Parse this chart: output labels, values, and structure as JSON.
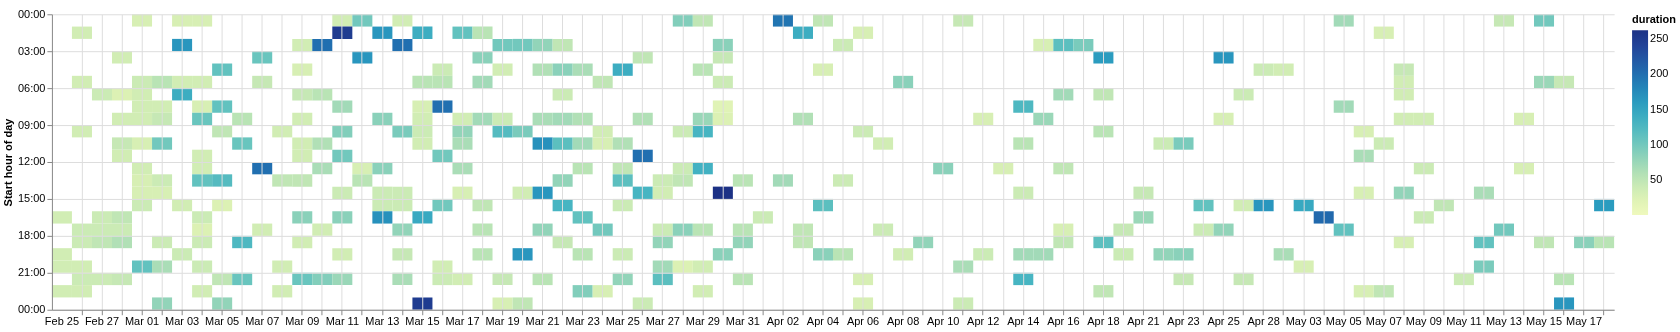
{
  "chart_data": {
    "type": "heatmap",
    "ylabel": "Start hour of day",
    "clabel": "duration",
    "grid": true,
    "categories": [
      "Feb 25",
      null,
      "Feb 27",
      null,
      "Mar 01",
      null,
      "Mar 03",
      null,
      "Mar 05",
      null,
      "Mar 07",
      null,
      "Mar 09",
      null,
      "Mar 11",
      null,
      "Mar 13",
      null,
      "Mar 15",
      null,
      "Mar 17",
      null,
      "Mar 19",
      null,
      "Mar 21",
      null,
      "Mar 23",
      null,
      "Mar 25",
      null,
      "Mar 27",
      null,
      "Mar 29",
      null,
      "Mar 31",
      null,
      "Apr 02",
      null,
      "Apr 04",
      null,
      "Apr 06",
      null,
      "Apr 08",
      null,
      "Apr 10",
      null,
      "Apr 12",
      null,
      "Apr 14",
      null,
      "Apr 16",
      null,
      "Apr 18",
      null,
      "Apr 21",
      null,
      "Apr 23",
      null,
      "Apr 25",
      null,
      "Apr 28",
      null,
      "May 03",
      null,
      "May 05",
      null,
      "May 07",
      null,
      "May 09",
      null,
      "May 11",
      null,
      "May 13",
      null,
      "May 15",
      null,
      "May 17",
      null
    ],
    "ylim": [
      24,
      0
    ],
    "yticks": [
      {
        "value": 0,
        "label": "00:00"
      },
      {
        "value": 3,
        "label": "03:00"
      },
      {
        "value": 6,
        "label": "06:00"
      },
      {
        "value": 9,
        "label": "09:00"
      },
      {
        "value": 12,
        "label": "12:00"
      },
      {
        "value": 15,
        "label": "15:00"
      },
      {
        "value": 18,
        "label": "18:00"
      },
      {
        "value": 21,
        "label": "21:00"
      },
      {
        "value": 24,
        "label": "00:00"
      }
    ],
    "clim": [
      0,
      263
    ],
    "cticks": [
      50,
      100,
      150,
      200,
      250
    ],
    "cells": [
      [
        null,
        null,
        null,
        null,
        30,
        null,
        30,
        30,
        null,
        null,
        null,
        null,
        null,
        null,
        35,
        100,
        null,
        35,
        null,
        null,
        null,
        null,
        null,
        null,
        null,
        null,
        null,
        null,
        null,
        null,
        null,
        90,
        50,
        null,
        null,
        null,
        195,
        null,
        50,
        null,
        null,
        null,
        null,
        null,
        null,
        45,
        null,
        null,
        null,
        null,
        null,
        null,
        null,
        null,
        null,
        null,
        null,
        null,
        null,
        null,
        null,
        null,
        null,
        null,
        70,
        null,
        null,
        null,
        null,
        null,
        null,
        null,
        45,
        null,
        100,
        null,
        null,
        null
      ],
      [
        null,
        35,
        null,
        null,
        null,
        null,
        null,
        null,
        null,
        null,
        null,
        null,
        null,
        null,
        250,
        null,
        165,
        null,
        140,
        null,
        110,
        55,
        null,
        null,
        null,
        null,
        null,
        null,
        null,
        null,
        null,
        null,
        null,
        null,
        null,
        null,
        null,
        140,
        null,
        null,
        30,
        null,
        null,
        null,
        null,
        null,
        null,
        null,
        null,
        null,
        null,
        null,
        null,
        null,
        null,
        null,
        null,
        null,
        null,
        null,
        null,
        null,
        null,
        null,
        null,
        null,
        30,
        null,
        null,
        null,
        null,
        null,
        null,
        null,
        null,
        null,
        null,
        null
      ],
      [
        null,
        null,
        null,
        null,
        null,
        null,
        165,
        null,
        null,
        null,
        null,
        null,
        35,
        200,
        null,
        null,
        null,
        200,
        null,
        null,
        null,
        null,
        100,
        100,
        80,
        50,
        null,
        null,
        null,
        null,
        null,
        null,
        null,
        85,
        null,
        null,
        null,
        null,
        null,
        40,
        null,
        null,
        null,
        null,
        null,
        null,
        null,
        null,
        null,
        30,
        115,
        95,
        null,
        null,
        null,
        null,
        null,
        null,
        null,
        null,
        null,
        null,
        null,
        null,
        null,
        null,
        null,
        null,
        null,
        null,
        null,
        null,
        null,
        null,
        null,
        null,
        null,
        null
      ],
      [
        null,
        null,
        null,
        35,
        null,
        null,
        null,
        null,
        null,
        null,
        105,
        null,
        null,
        null,
        null,
        165,
        null,
        null,
        null,
        null,
        null,
        85,
        null,
        null,
        null,
        null,
        null,
        null,
        null,
        50,
        null,
        null,
        null,
        45,
        null,
        null,
        null,
        null,
        null,
        null,
        null,
        null,
        null,
        null,
        null,
        null,
        null,
        null,
        null,
        null,
        null,
        null,
        160,
        null,
        null,
        null,
        null,
        null,
        165,
        null,
        null,
        null,
        null,
        null,
        null,
        null,
        null,
        null,
        null,
        null,
        null,
        null,
        null,
        null,
        null,
        null,
        null,
        null
      ],
      [
        null,
        null,
        null,
        null,
        null,
        null,
        null,
        null,
        110,
        null,
        null,
        null,
        30,
        null,
        null,
        null,
        null,
        null,
        null,
        40,
        null,
        null,
        35,
        null,
        60,
        85,
        65,
        null,
        140,
        null,
        null,
        null,
        55,
        null,
        null,
        null,
        null,
        null,
        30,
        null,
        null,
        null,
        null,
        null,
        null,
        null,
        null,
        null,
        null,
        null,
        null,
        null,
        null,
        null,
        null,
        null,
        null,
        null,
        null,
        null,
        40,
        35,
        null,
        null,
        null,
        null,
        null,
        45,
        null,
        null,
        null,
        null,
        null,
        null,
        null,
        null,
        null,
        null
      ],
      [
        null,
        35,
        null,
        null,
        40,
        55,
        35,
        35,
        null,
        null,
        45,
        null,
        null,
        null,
        null,
        null,
        null,
        null,
        55,
        55,
        null,
        70,
        null,
        null,
        null,
        null,
        null,
        50,
        null,
        null,
        null,
        null,
        null,
        40,
        null,
        null,
        null,
        null,
        null,
        null,
        null,
        null,
        85,
        null,
        null,
        null,
        null,
        null,
        null,
        null,
        null,
        null,
        null,
        null,
        null,
        null,
        null,
        null,
        null,
        null,
        null,
        null,
        null,
        null,
        null,
        null,
        null,
        35,
        null,
        null,
        null,
        null,
        null,
        null,
        75,
        45,
        null,
        null
      ],
      [
        null,
        null,
        40,
        25,
        35,
        null,
        140,
        null,
        null,
        null,
        null,
        null,
        45,
        55,
        null,
        null,
        null,
        null,
        null,
        null,
        null,
        null,
        null,
        null,
        null,
        40,
        null,
        null,
        null,
        null,
        null,
        null,
        null,
        null,
        null,
        null,
        null,
        null,
        null,
        null,
        null,
        null,
        null,
        null,
        null,
        null,
        null,
        null,
        null,
        null,
        70,
        null,
        50,
        null,
        null,
        null,
        null,
        null,
        null,
        40,
        null,
        null,
        null,
        null,
        null,
        null,
        null,
        35,
        null,
        null,
        null,
        null,
        null,
        null,
        null,
        null,
        null,
        null
      ],
      [
        null,
        null,
        null,
        null,
        35,
        35,
        null,
        30,
        110,
        null,
        null,
        null,
        null,
        null,
        70,
        null,
        null,
        null,
        30,
        200,
        null,
        null,
        null,
        null,
        null,
        null,
        null,
        null,
        null,
        null,
        null,
        null,
        null,
        20,
        null,
        null,
        null,
        null,
        null,
        null,
        null,
        null,
        null,
        null,
        null,
        null,
        null,
        null,
        125,
        null,
        null,
        null,
        null,
        null,
        null,
        null,
        null,
        null,
        null,
        null,
        null,
        null,
        null,
        null,
        70,
        null,
        null,
        null,
        null,
        null,
        null,
        null,
        null,
        null,
        null,
        null,
        null,
        null
      ],
      [
        null,
        null,
        null,
        35,
        35,
        45,
        null,
        105,
        null,
        55,
        null,
        null,
        35,
        null,
        null,
        null,
        85,
        null,
        35,
        null,
        35,
        70,
        40,
        null,
        65,
        70,
        60,
        null,
        null,
        60,
        null,
        null,
        75,
        25,
        null,
        null,
        null,
        60,
        null,
        null,
        null,
        null,
        null,
        null,
        null,
        null,
        30,
        null,
        null,
        75,
        null,
        null,
        null,
        null,
        null,
        null,
        null,
        null,
        30,
        null,
        null,
        null,
        null,
        null,
        null,
        null,
        null,
        35,
        35,
        null,
        null,
        null,
        null,
        30,
        null,
        null,
        null,
        null
      ],
      [
        null,
        35,
        null,
        null,
        null,
        null,
        null,
        null,
        50,
        null,
        null,
        35,
        null,
        null,
        90,
        null,
        null,
        95,
        40,
        null,
        80,
        null,
        120,
        95,
        null,
        null,
        null,
        35,
        null,
        null,
        null,
        40,
        130,
        null,
        null,
        null,
        null,
        null,
        null,
        null,
        40,
        null,
        null,
        null,
        null,
        null,
        null,
        null,
        null,
        null,
        null,
        null,
        55,
        null,
        null,
        null,
        null,
        null,
        null,
        null,
        null,
        null,
        null,
        null,
        null,
        30,
        null,
        null,
        null,
        null,
        null,
        null,
        null,
        null,
        null,
        null,
        null,
        null
      ],
      [
        null,
        null,
        null,
        45,
        30,
        100,
        null,
        null,
        null,
        105,
        null,
        null,
        35,
        60,
        null,
        null,
        null,
        null,
        35,
        null,
        65,
        null,
        null,
        null,
        170,
        115,
        70,
        30,
        60,
        null,
        null,
        null,
        null,
        null,
        null,
        null,
        null,
        null,
        null,
        null,
        null,
        35,
        null,
        null,
        null,
        null,
        null,
        null,
        55,
        null,
        null,
        null,
        null,
        null,
        null,
        40,
        95,
        null,
        null,
        null,
        null,
        null,
        null,
        null,
        null,
        null,
        40,
        null,
        null,
        null,
        null,
        null,
        null,
        null,
        null,
        null,
        null,
        null
      ],
      [
        null,
        null,
        null,
        35,
        null,
        null,
        null,
        35,
        null,
        null,
        null,
        null,
        35,
        null,
        100,
        null,
        null,
        null,
        null,
        100,
        null,
        null,
        null,
        null,
        null,
        null,
        null,
        null,
        null,
        200,
        null,
        null,
        null,
        null,
        null,
        null,
        null,
        null,
        null,
        null,
        null,
        null,
        null,
        null,
        null,
        null,
        null,
        null,
        null,
        null,
        null,
        null,
        null,
        null,
        null,
        null,
        null,
        null,
        null,
        null,
        null,
        null,
        null,
        null,
        null,
        65,
        null,
        null,
        null,
        null,
        null,
        null,
        null,
        null,
        null,
        null,
        null,
        null
      ],
      [
        null,
        null,
        null,
        null,
        35,
        null,
        null,
        35,
        null,
        null,
        200,
        null,
        null,
        65,
        null,
        30,
        85,
        null,
        null,
        null,
        65,
        null,
        null,
        null,
        null,
        null,
        55,
        null,
        50,
        null,
        null,
        40,
        135,
        null,
        null,
        null,
        null,
        null,
        null,
        null,
        null,
        null,
        null,
        null,
        85,
        null,
        null,
        30,
        null,
        null,
        50,
        null,
        null,
        null,
        null,
        null,
        null,
        null,
        null,
        null,
        null,
        null,
        null,
        null,
        null,
        null,
        null,
        null,
        40,
        null,
        null,
        null,
        null,
        30,
        null,
        null,
        null,
        null
      ],
      [
        null,
        null,
        null,
        null,
        30,
        40,
        null,
        110,
        120,
        null,
        null,
        50,
        50,
        null,
        null,
        55,
        null,
        null,
        null,
        null,
        null,
        null,
        null,
        null,
        null,
        80,
        null,
        null,
        115,
        null,
        40,
        50,
        null,
        null,
        55,
        null,
        70,
        null,
        null,
        40,
        null,
        null,
        null,
        null,
        null,
        null,
        null,
        null,
        null,
        null,
        null,
        null,
        null,
        null,
        null,
        null,
        null,
        null,
        null,
        null,
        null,
        null,
        null,
        null,
        null,
        null,
        null,
        null,
        null,
        null,
        null,
        null,
        null,
        null,
        null,
        null,
        null,
        null
      ],
      [
        null,
        null,
        null,
        null,
        30,
        30,
        null,
        null,
        null,
        null,
        null,
        null,
        null,
        null,
        40,
        null,
        40,
        40,
        null,
        null,
        30,
        null,
        null,
        35,
        165,
        null,
        null,
        null,
        null,
        130,
        35,
        null,
        null,
        263,
        null,
        null,
        null,
        null,
        null,
        null,
        null,
        null,
        null,
        null,
        null,
        null,
        null,
        null,
        40,
        null,
        null,
        null,
        null,
        null,
        45,
        null,
        null,
        null,
        null,
        null,
        null,
        null,
        null,
        null,
        null,
        30,
        null,
        80,
        null,
        null,
        null,
        65,
        null,
        null,
        null,
        null,
        null,
        null
      ],
      [
        null,
        null,
        null,
        null,
        40,
        null,
        35,
        null,
        25,
        null,
        null,
        null,
        null,
        null,
        null,
        null,
        40,
        40,
        null,
        100,
        null,
        50,
        null,
        null,
        null,
        130,
        null,
        null,
        40,
        null,
        null,
        null,
        null,
        null,
        null,
        null,
        null,
        null,
        115,
        null,
        null,
        null,
        null,
        null,
        null,
        null,
        null,
        null,
        null,
        null,
        null,
        null,
        null,
        null,
        null,
        null,
        null,
        110,
        null,
        35,
        165,
        null,
        145,
        null,
        null,
        null,
        null,
        null,
        null,
        50,
        null,
        null,
        null,
        null,
        null,
        null,
        null,
        160
      ],
      [
        35,
        null,
        40,
        50,
        null,
        null,
        null,
        40,
        null,
        null,
        null,
        null,
        85,
        null,
        85,
        null,
        170,
        null,
        145,
        null,
        null,
        null,
        null,
        null,
        null,
        null,
        110,
        null,
        null,
        null,
        null,
        null,
        null,
        null,
        null,
        40,
        null,
        null,
        null,
        null,
        null,
        null,
        null,
        null,
        null,
        null,
        null,
        null,
        null,
        null,
        null,
        null,
        null,
        null,
        75,
        null,
        null,
        null,
        null,
        null,
        null,
        null,
        null,
        205,
        null,
        null,
        null,
        null,
        40,
        null,
        null,
        null,
        null,
        null,
        null,
        null,
        null,
        null
      ],
      [
        null,
        40,
        40,
        40,
        null,
        null,
        null,
        25,
        null,
        null,
        35,
        null,
        null,
        35,
        null,
        null,
        null,
        80,
        null,
        null,
        null,
        55,
        null,
        null,
        80,
        null,
        null,
        100,
        null,
        null,
        40,
        85,
        55,
        null,
        55,
        null,
        null,
        50,
        null,
        null,
        null,
        40,
        null,
        null,
        null,
        null,
        null,
        null,
        null,
        null,
        30,
        null,
        null,
        45,
        null,
        null,
        null,
        40,
        80,
        null,
        null,
        null,
        null,
        null,
        110,
        null,
        null,
        null,
        null,
        null,
        null,
        null,
        100,
        null,
        null,
        null,
        null,
        null
      ],
      [
        null,
        40,
        50,
        60,
        null,
        40,
        null,
        40,
        null,
        125,
        null,
        null,
        35,
        null,
        null,
        null,
        null,
        null,
        null,
        null,
        null,
        null,
        null,
        null,
        null,
        45,
        null,
        null,
        null,
        null,
        80,
        null,
        null,
        null,
        80,
        null,
        null,
        50,
        null,
        null,
        null,
        null,
        null,
        80,
        null,
        null,
        null,
        null,
        null,
        null,
        50,
        null,
        115,
        null,
        null,
        null,
        null,
        null,
        null,
        null,
        null,
        null,
        null,
        null,
        null,
        null,
        null,
        30,
        null,
        null,
        null,
        110,
        null,
        null,
        50,
        null,
        85,
        55
      ],
      [
        35,
        null,
        null,
        null,
        null,
        null,
        40,
        null,
        null,
        null,
        null,
        null,
        null,
        null,
        35,
        null,
        null,
        45,
        null,
        null,
        null,
        55,
        null,
        165,
        null,
        null,
        55,
        null,
        40,
        null,
        null,
        null,
        null,
        85,
        null,
        null,
        null,
        null,
        85,
        55,
        null,
        null,
        35,
        null,
        null,
        null,
        40,
        null,
        70,
        70,
        null,
        null,
        null,
        40,
        null,
        80,
        85,
        null,
        null,
        null,
        null,
        65,
        null,
        null,
        null,
        null,
        null,
        null,
        null,
        null,
        null,
        null,
        null,
        null,
        null,
        null,
        null,
        null
      ],
      [
        35,
        35,
        null,
        null,
        110,
        65,
        null,
        40,
        null,
        null,
        null,
        35,
        null,
        null,
        null,
        null,
        null,
        null,
        null,
        35,
        null,
        null,
        null,
        null,
        null,
        null,
        null,
        null,
        null,
        null,
        70,
        25,
        35,
        null,
        null,
        null,
        null,
        null,
        null,
        null,
        null,
        null,
        null,
        null,
        null,
        65,
        null,
        null,
        null,
        null,
        null,
        null,
        null,
        null,
        null,
        null,
        null,
        null,
        null,
        null,
        null,
        null,
        30,
        null,
        null,
        null,
        null,
        null,
        null,
        null,
        null,
        95,
        null,
        null,
        null,
        null,
        null,
        null
      ],
      [
        null,
        40,
        40,
        45,
        null,
        null,
        null,
        null,
        50,
        105,
        null,
        null,
        105,
        90,
        75,
        null,
        null,
        65,
        null,
        40,
        35,
        null,
        45,
        null,
        55,
        null,
        null,
        null,
        80,
        null,
        115,
        null,
        null,
        null,
        55,
        null,
        null,
        null,
        null,
        null,
        30,
        null,
        null,
        null,
        null,
        null,
        null,
        null,
        130,
        null,
        null,
        null,
        null,
        null,
        null,
        null,
        45,
        null,
        null,
        45,
        null,
        null,
        null,
        null,
        null,
        null,
        null,
        null,
        null,
        null,
        40,
        null,
        null,
        null,
        null,
        55,
        null,
        null
      ],
      [
        35,
        35,
        null,
        null,
        null,
        null,
        null,
        35,
        null,
        null,
        null,
        35,
        null,
        null,
        null,
        null,
        null,
        null,
        null,
        null,
        null,
        null,
        null,
        null,
        null,
        null,
        90,
        30,
        null,
        null,
        null,
        null,
        35,
        null,
        null,
        null,
        null,
        null,
        null,
        null,
        null,
        null,
        null,
        null,
        null,
        null,
        null,
        null,
        null,
        null,
        null,
        null,
        50,
        null,
        null,
        null,
        null,
        null,
        null,
        null,
        null,
        null,
        null,
        null,
        null,
        30,
        50,
        null,
        null,
        null,
        null,
        null,
        null,
        null,
        null,
        null,
        null,
        null
      ],
      [
        null,
        null,
        null,
        null,
        null,
        80,
        null,
        null,
        80,
        null,
        null,
        null,
        null,
        null,
        null,
        null,
        null,
        null,
        250,
        null,
        null,
        null,
        30,
        50,
        null,
        null,
        null,
        null,
        null,
        40,
        null,
        null,
        null,
        null,
        null,
        null,
        null,
        null,
        null,
        null,
        30,
        null,
        null,
        null,
        null,
        40,
        null,
        null,
        null,
        null,
        null,
        null,
        null,
        null,
        null,
        null,
        null,
        null,
        null,
        null,
        null,
        null,
        null,
        null,
        null,
        null,
        null,
        null,
        null,
        null,
        null,
        null,
        null,
        null,
        null,
        165,
        null,
        null
      ]
    ]
  }
}
